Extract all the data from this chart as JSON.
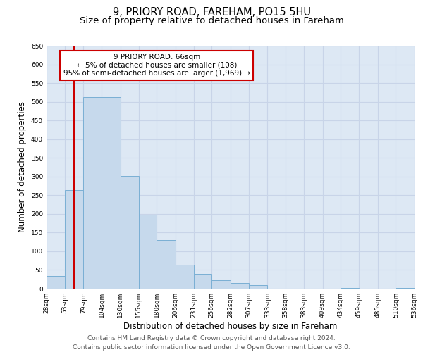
{
  "title": "9, PRIORY ROAD, FAREHAM, PO15 5HU",
  "subtitle": "Size of property relative to detached houses in Fareham",
  "xlabel": "Distribution of detached houses by size in Fareham",
  "ylabel": "Number of detached properties",
  "bar_edges": [
    28,
    53,
    79,
    104,
    130,
    155,
    180,
    206,
    231,
    256,
    282,
    307,
    333,
    358,
    383,
    409,
    434,
    459,
    485,
    510,
    536
  ],
  "bar_heights": [
    33,
    263,
    512,
    512,
    302,
    197,
    130,
    65,
    40,
    23,
    15,
    9,
    0,
    0,
    0,
    0,
    1,
    0,
    0,
    1,
    0
  ],
  "bar_color": "#c6d9ec",
  "bar_edgecolor": "#7aafd4",
  "grid_color": "#c8d4e8",
  "background_color": "#dde8f4",
  "annotation_box_edgecolor": "#cc0000",
  "annotation_line_color": "#cc0000",
  "property_size": 66,
  "property_label": "9 PRIORY ROAD: 66sqm",
  "annotation_line1": "← 5% of detached houses are smaller (108)",
  "annotation_line2": "95% of semi-detached houses are larger (1,969) →",
  "ylim": [
    0,
    650
  ],
  "yticks": [
    0,
    50,
    100,
    150,
    200,
    250,
    300,
    350,
    400,
    450,
    500,
    550,
    600,
    650
  ],
  "xtick_labels": [
    "28sqm",
    "53sqm",
    "79sqm",
    "104sqm",
    "130sqm",
    "155sqm",
    "180sqm",
    "206sqm",
    "231sqm",
    "256sqm",
    "282sqm",
    "307sqm",
    "333sqm",
    "358sqm",
    "383sqm",
    "409sqm",
    "434sqm",
    "459sqm",
    "485sqm",
    "510sqm",
    "536sqm"
  ],
  "footer_line1": "Contains HM Land Registry data © Crown copyright and database right 2024.",
  "footer_line2": "Contains public sector information licensed under the Open Government Licence v3.0.",
  "title_fontsize": 10.5,
  "subtitle_fontsize": 9.5,
  "tick_fontsize": 6.5,
  "label_fontsize": 8.5,
  "footer_fontsize": 6.5,
  "annot_fontsize": 7.5
}
